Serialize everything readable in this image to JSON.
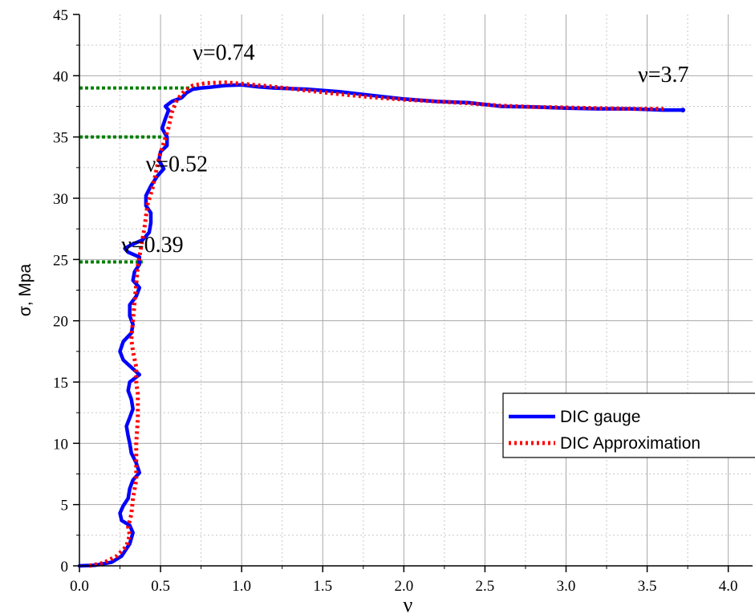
{
  "chart_data": {
    "type": "line",
    "xlabel": "ν",
    "ylabel": "σ, Mpa",
    "xlim": [
      0,
      4.15
    ],
    "ylim": [
      0,
      45
    ],
    "x_ticks": [
      0.0,
      0.5,
      1.0,
      1.5,
      2.0,
      2.5,
      3.0,
      3.5,
      4.0
    ],
    "x_tick_labels": [
      "0.0",
      "0.5",
      "1.0",
      "1.5",
      "2.0",
      "2.5",
      "3.0",
      "3.5",
      "4.0"
    ],
    "y_ticks": [
      0,
      5,
      10,
      15,
      20,
      25,
      30,
      35,
      40,
      45
    ],
    "y_tick_labels": [
      "0",
      "5",
      "10",
      "15",
      "20",
      "25",
      "30",
      "35",
      "40",
      "45"
    ],
    "grid": true,
    "legend_position": "lower-right",
    "series": [
      {
        "name": "DIC gauge",
        "color": "#0000ff",
        "style": "solid",
        "points": [
          [
            0.0,
            0.0
          ],
          [
            0.1,
            0.05
          ],
          [
            0.2,
            0.3
          ],
          [
            0.26,
            0.8
          ],
          [
            0.31,
            1.8
          ],
          [
            0.33,
            2.7
          ],
          [
            0.31,
            3.3
          ],
          [
            0.26,
            3.7
          ],
          [
            0.25,
            4.3
          ],
          [
            0.27,
            4.9
          ],
          [
            0.3,
            5.5
          ],
          [
            0.31,
            6.3
          ],
          [
            0.33,
            7.0
          ],
          [
            0.37,
            7.6
          ],
          [
            0.35,
            8.4
          ],
          [
            0.32,
            9.2
          ],
          [
            0.31,
            10.0
          ],
          [
            0.3,
            10.6
          ],
          [
            0.29,
            11.4
          ],
          [
            0.31,
            12.1
          ],
          [
            0.33,
            12.8
          ],
          [
            0.32,
            13.6
          ],
          [
            0.3,
            14.3
          ],
          [
            0.31,
            15.0
          ],
          [
            0.37,
            15.6
          ],
          [
            0.32,
            16.2
          ],
          [
            0.27,
            16.8
          ],
          [
            0.25,
            17.5
          ],
          [
            0.27,
            18.3
          ],
          [
            0.32,
            19.0
          ],
          [
            0.33,
            19.7
          ],
          [
            0.31,
            20.4
          ],
          [
            0.31,
            21.3
          ],
          [
            0.35,
            22.0
          ],
          [
            0.37,
            22.7
          ],
          [
            0.33,
            23.3
          ],
          [
            0.34,
            24.0
          ],
          [
            0.37,
            24.6
          ],
          [
            0.37,
            25.2
          ],
          [
            0.3,
            25.6
          ],
          [
            0.28,
            25.9
          ],
          [
            0.32,
            26.2
          ],
          [
            0.39,
            26.6
          ],
          [
            0.43,
            27.2
          ],
          [
            0.44,
            28.0
          ],
          [
            0.44,
            28.8
          ],
          [
            0.41,
            29.4
          ],
          [
            0.41,
            30.2
          ],
          [
            0.44,
            31.0
          ],
          [
            0.48,
            31.8
          ],
          [
            0.52,
            32.4
          ],
          [
            0.49,
            33.1
          ],
          [
            0.5,
            33.8
          ],
          [
            0.54,
            34.3
          ],
          [
            0.54,
            35.0
          ],
          [
            0.51,
            35.7
          ],
          [
            0.53,
            36.5
          ],
          [
            0.55,
            37.2
          ],
          [
            0.53,
            37.5
          ],
          [
            0.57,
            37.9
          ],
          [
            0.63,
            38.2
          ],
          [
            0.66,
            38.6
          ],
          [
            0.7,
            38.9
          ],
          [
            0.75,
            39.0
          ],
          [
            0.8,
            39.05
          ],
          [
            0.9,
            39.2
          ],
          [
            1.0,
            39.25
          ],
          [
            1.1,
            39.1
          ],
          [
            1.2,
            39.0
          ],
          [
            1.4,
            38.9
          ],
          [
            1.6,
            38.7
          ],
          [
            1.8,
            38.4
          ],
          [
            2.0,
            38.1
          ],
          [
            2.2,
            37.9
          ],
          [
            2.4,
            37.8
          ],
          [
            2.6,
            37.5
          ],
          [
            2.8,
            37.45
          ],
          [
            3.0,
            37.35
          ],
          [
            3.2,
            37.3
          ],
          [
            3.4,
            37.3
          ],
          [
            3.6,
            37.2
          ],
          [
            3.72,
            37.2
          ]
        ]
      },
      {
        "name": "DIC Approximation",
        "color": "#ff0000",
        "style": "dotted",
        "points": [
          [
            0.06,
            0.0
          ],
          [
            0.15,
            0.25
          ],
          [
            0.23,
            0.8
          ],
          [
            0.29,
            1.6
          ],
          [
            0.31,
            2.5
          ],
          [
            0.3,
            3.2
          ],
          [
            0.32,
            4.2
          ],
          [
            0.33,
            5.5
          ],
          [
            0.35,
            7.0
          ],
          [
            0.35,
            8.5
          ],
          [
            0.35,
            10.0
          ],
          [
            0.36,
            12.0
          ],
          [
            0.36,
            14.0
          ],
          [
            0.35,
            15.0
          ],
          [
            0.35,
            16.2
          ],
          [
            0.33,
            17.5
          ],
          [
            0.32,
            18.5
          ],
          [
            0.33,
            20.0
          ],
          [
            0.34,
            21.5
          ],
          [
            0.35,
            23.0
          ],
          [
            0.36,
            24.5
          ],
          [
            0.38,
            26.0
          ],
          [
            0.4,
            27.5
          ],
          [
            0.41,
            28.5
          ],
          [
            0.42,
            29.5
          ],
          [
            0.45,
            30.8
          ],
          [
            0.47,
            32.0
          ],
          [
            0.49,
            33.3
          ],
          [
            0.52,
            34.5
          ],
          [
            0.55,
            35.8
          ],
          [
            0.57,
            37.0
          ],
          [
            0.6,
            38.0
          ],
          [
            0.65,
            38.8
          ],
          [
            0.7,
            39.2
          ],
          [
            0.78,
            39.4
          ],
          [
            0.9,
            39.45
          ],
          [
            1.0,
            39.35
          ],
          [
            1.2,
            39.1
          ],
          [
            1.4,
            38.8
          ],
          [
            1.6,
            38.5
          ],
          [
            1.8,
            38.25
          ],
          [
            2.0,
            38.05
          ],
          [
            2.2,
            37.9
          ],
          [
            2.4,
            37.75
          ],
          [
            2.6,
            37.55
          ],
          [
            2.8,
            37.45
          ],
          [
            3.0,
            37.4
          ],
          [
            3.2,
            37.35
          ],
          [
            3.4,
            37.3
          ],
          [
            3.6,
            37.3
          ]
        ]
      }
    ],
    "reference_lines": [
      {
        "x_from": 0.0,
        "x_to": 0.39,
        "y": 24.8,
        "color": "#008000"
      },
      {
        "x_from": 0.0,
        "x_to": 0.52,
        "y": 35.0,
        "color": "#008000"
      },
      {
        "x_from": 0.0,
        "x_to": 0.74,
        "y": 39.0,
        "color": "#008000"
      }
    ],
    "annotations": [
      {
        "text": "ν=0.39",
        "x": 0.45,
        "y": 25.6
      },
      {
        "text": "ν=0.52",
        "x": 0.6,
        "y": 32.2
      },
      {
        "text": "ν=0.74",
        "x": 0.89,
        "y": 41.3
      },
      {
        "text": "ν=3.7",
        "x": 3.6,
        "y": 39.5
      }
    ]
  }
}
